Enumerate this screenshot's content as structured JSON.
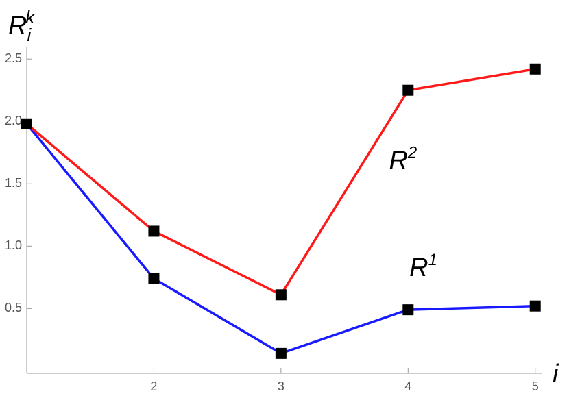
{
  "chart_data": {
    "type": "line",
    "x": [
      1,
      2,
      3,
      4,
      5
    ],
    "series": [
      {
        "name": "R1",
        "color": "#1a1aff",
        "values": [
          1.98,
          0.74,
          0.14,
          0.49,
          0.52
        ]
      },
      {
        "name": "R2",
        "color": "#ff1a1a",
        "values": [
          1.98,
          1.12,
          0.61,
          2.25,
          2.42
        ]
      }
    ],
    "xlim": [
      1,
      5.05
    ],
    "xticks": [
      2,
      3,
      4,
      5
    ],
    "ylim": [
      -0.02,
      2.6
    ],
    "yticks": [
      0.5,
      {
        "value": 1,
        "label": "1.0"
      },
      1.5,
      {
        "value": 2,
        "label": "2.0"
      },
      2.5
    ],
    "xlabel": "i",
    "ylabel": {
      "base": "R",
      "sub": "i",
      "sup": "k"
    },
    "annotations": [
      {
        "base": "R",
        "sup": "2",
        "x": 3.85,
        "y": 1.62
      },
      {
        "base": "R",
        "sup": "1",
        "x": 4.01,
        "y": 0.76
      }
    ],
    "marker_color": "#000000",
    "grid": false
  }
}
